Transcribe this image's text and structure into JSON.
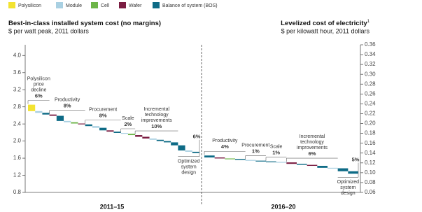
{
  "legend": [
    {
      "name": "Polysilicon",
      "color": "#f3e330"
    },
    {
      "name": "Module",
      "color": "#a9d0e2"
    },
    {
      "name": "Cell",
      "color": "#6db548"
    },
    {
      "name": "Wafer",
      "color": "#7b1d42"
    },
    {
      "name": "Balance of system (BOS)",
      "color": "#0e6b86"
    }
  ],
  "chart_data": [
    {
      "type": "waterfall",
      "title": "Best-in-class installed system cost (no margins)",
      "subtitle": "$ per watt peak, 2011 dollars",
      "category": "2011–15",
      "ylim": [
        0.8,
        4.25
      ],
      "yticks": [
        0.8,
        1.2,
        1.6,
        {
          "value": 2,
          "label": "2.0"
        },
        2.4,
        2.8,
        3.2,
        3.6,
        {
          "value": 4,
          "label": "4.0"
        }
      ],
      "start": 2.85,
      "levers": [
        {
          "label": [
            "Polysilicon",
            "price",
            "decline"
          ],
          "pct": "6%",
          "segments": [
            {
              "component": "Polysilicon",
              "value": -0.15
            },
            {
              "component": "Module",
              "value": -0.04
            },
            {
              "component": "Balance of system (BOS)",
              "value": -0.04
            }
          ]
        },
        {
          "label": [
            "Productivity"
          ],
          "pct": "8%",
          "segments": [
            {
              "component": "Wafer",
              "value": -0.03
            },
            {
              "component": "Balance of system (BOS)",
              "value": -0.12
            },
            {
              "component": "Module",
              "value": -0.03
            },
            {
              "component": "Cell",
              "value": -0.03
            },
            {
              "component": "Wafer",
              "value": -0.02
            }
          ]
        },
        {
          "label": [
            "Procurement"
          ],
          "pct": "8%",
          "segments": [
            {
              "component": "Balance of system (BOS)",
              "value": -0.04
            },
            {
              "component": "Module",
              "value": -0.04
            },
            {
              "component": "Balance of system (BOS)",
              "value": -0.06
            },
            {
              "component": "Wafer",
              "value": -0.03
            },
            {
              "component": "Balance of system (BOS)",
              "value": -0.03
            }
          ]
        },
        {
          "label": [
            "Scale"
          ],
          "pct": "2%",
          "segments": [
            {
              "component": "Module",
              "value": -0.02
            },
            {
              "component": "Cell",
              "value": -0.03
            }
          ]
        },
        {
          "label": [
            "Incremental",
            "technology",
            "improvements"
          ],
          "pct": "10%",
          "segments": [
            {
              "component": "Wafer",
              "value": -0.04
            },
            {
              "component": "Wafer",
              "value": -0.04
            },
            {
              "component": "Module",
              "value": -0.03
            },
            {
              "component": "Balance of system (BOS)",
              "value": -0.03
            },
            {
              "component": "Balance of system (BOS)",
              "value": -0.03
            },
            {
              "component": "Balance of system (BOS)",
              "value": -0.07
            }
          ]
        },
        {
          "label": [
            "Optimized",
            "system",
            "design"
          ],
          "pct": "6%",
          "segments": [
            {
              "component": "Balance of system (BOS)",
              "value": -0.12
            },
            {
              "component": "Module",
              "value": -0.03
            },
            {
              "component": "Balance of system (BOS)",
              "value": -0.03
            }
          ]
        }
      ]
    },
    {
      "type": "waterfall",
      "title": "Levelized cost of electricity",
      "title_note": "1",
      "subtitle": "$ per kilowatt hour, 2011 dollars",
      "category": "2016–20",
      "ylim": [
        0.06,
        0.36
      ],
      "yticks": [
        0.06,
        0.08,
        {
          "value": 0.1,
          "label": "0.10"
        },
        0.12,
        0.14,
        0.16,
        0.18,
        {
          "value": 0.2,
          "label": "0.20"
        },
        0.22,
        0.24,
        0.26,
        0.28,
        {
          "value": 0.3,
          "label": "0.30"
        },
        0.32,
        0.34,
        0.36
      ],
      "start": 0.135,
      "levers": [
        {
          "label": [
            "Productivity"
          ],
          "pct": "4%",
          "segments": [
            {
              "component": "Balance of system (BOS)",
              "value": -0.004
            },
            {
              "component": "Wafer",
              "value": -0.002
            },
            {
              "component": "Cell",
              "value": -0.001
            },
            {
              "component": "Balance of system (BOS)",
              "value": -0.002
            }
          ]
        },
        {
          "label": [
            "Procurement"
          ],
          "pct": "1%",
          "segments": [
            {
              "component": "Module",
              "value": -0.0015
            },
            {
              "component": "Balance of system (BOS)",
              "value": -0.0015
            }
          ]
        },
        {
          "label": [
            "Scale"
          ],
          "pct": "1%",
          "segments": [
            {
              "component": "Balance of system (BOS)",
              "value": -0.001
            },
            {
              "component": "Module",
              "value": -0.001
            }
          ]
        },
        {
          "label": [
            "Incremental",
            "technology",
            "improvements"
          ],
          "pct": "6%",
          "segments": [
            {
              "component": "Wafer",
              "value": -0.003
            },
            {
              "component": "Balance of system (BOS)",
              "value": -0.002
            },
            {
              "component": "Wafer",
              "value": -0.002
            },
            {
              "component": "Balance of system (BOS)",
              "value": -0.004
            },
            {
              "component": "Module",
              "value": -0.001
            }
          ]
        },
        {
          "label": [
            "Optimized",
            "system",
            "design"
          ],
          "pct": "5%",
          "segments": [
            {
              "component": "Balance of system (BOS)",
              "value": -0.006
            },
            {
              "component": "Balance of system (BOS)",
              "value": -0.005
            }
          ]
        }
      ]
    }
  ]
}
